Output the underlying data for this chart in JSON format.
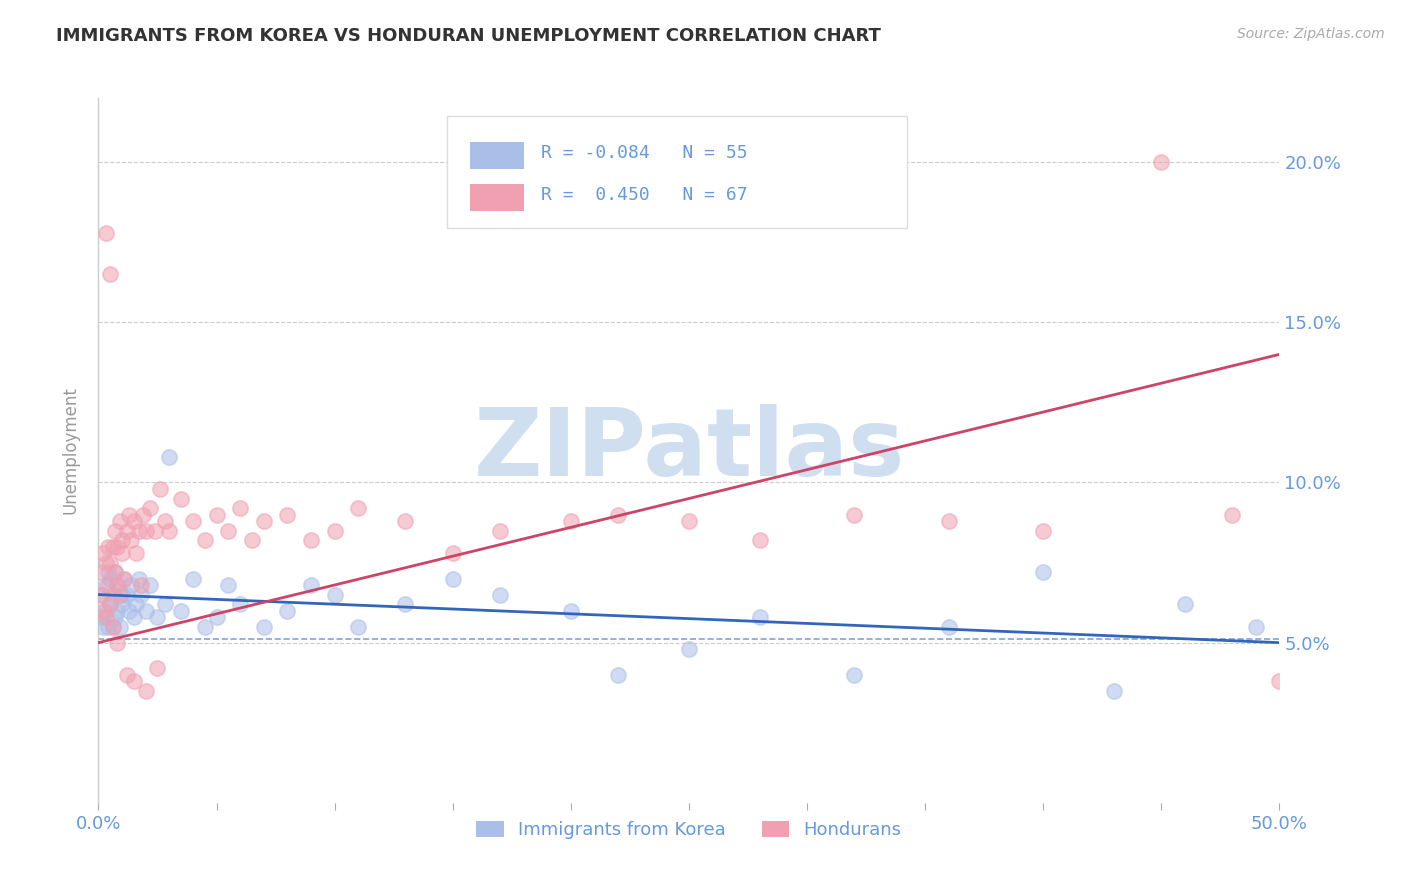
{
  "title": "IMMIGRANTS FROM KOREA VS HONDURAN UNEMPLOYMENT CORRELATION CHART",
  "source_text": "Source: ZipAtlas.com",
  "ylabel": "Unemployment",
  "xlim": [
    0.0,
    0.5
  ],
  "ylim": [
    0.0,
    0.22
  ],
  "yticks": [
    0.05,
    0.1,
    0.15,
    0.2
  ],
  "yticklabels": [
    "5.0%",
    "10.0%",
    "15.0%",
    "20.0%"
  ],
  "korea_R": -0.084,
  "korea_N": 55,
  "honduran_R": 0.45,
  "honduran_N": 67,
  "korea_color": "#aabfe8",
  "honduran_color": "#f0a0b0",
  "korea_line_color": "#3366bb",
  "honduran_line_color": "#cc4466",
  "background_color": "#ffffff",
  "watermark_text": "ZIPatlas",
  "watermark_color": "#d0dff0",
  "title_fontsize": 13,
  "axis_label_color": "#6699dd",
  "grid_color": "#cccccc",
  "legend_label_korea": "Immigrants from Korea",
  "legend_label_honduran": "Hondurans",
  "korea_scatter_x": [
    0.001,
    0.002,
    0.002,
    0.003,
    0.003,
    0.004,
    0.004,
    0.005,
    0.005,
    0.006,
    0.006,
    0.007,
    0.007,
    0.008,
    0.008,
    0.009,
    0.01,
    0.01,
    0.011,
    0.012,
    0.013,
    0.014,
    0.015,
    0.016,
    0.017,
    0.018,
    0.02,
    0.022,
    0.025,
    0.028,
    0.03,
    0.035,
    0.04,
    0.045,
    0.05,
    0.055,
    0.06,
    0.07,
    0.08,
    0.09,
    0.1,
    0.11,
    0.13,
    0.15,
    0.17,
    0.2,
    0.22,
    0.25,
    0.28,
    0.32,
    0.36,
    0.4,
    0.43,
    0.46,
    0.49
  ],
  "korea_scatter_y": [
    0.058,
    0.055,
    0.065,
    0.06,
    0.068,
    0.055,
    0.072,
    0.062,
    0.07,
    0.055,
    0.065,
    0.058,
    0.072,
    0.06,
    0.068,
    0.055,
    0.065,
    0.062,
    0.07,
    0.065,
    0.06,
    0.068,
    0.058,
    0.062,
    0.07,
    0.065,
    0.06,
    0.068,
    0.058,
    0.062,
    0.108,
    0.06,
    0.07,
    0.055,
    0.058,
    0.068,
    0.062,
    0.055,
    0.06,
    0.068,
    0.065,
    0.055,
    0.062,
    0.07,
    0.065,
    0.06,
    0.04,
    0.048,
    0.058,
    0.04,
    0.055,
    0.072,
    0.035,
    0.062,
    0.055
  ],
  "honduran_scatter_x": [
    0.001,
    0.001,
    0.002,
    0.002,
    0.003,
    0.003,
    0.004,
    0.004,
    0.005,
    0.005,
    0.006,
    0.006,
    0.007,
    0.007,
    0.008,
    0.008,
    0.009,
    0.009,
    0.01,
    0.01,
    0.011,
    0.012,
    0.013,
    0.014,
    0.015,
    0.016,
    0.017,
    0.018,
    0.019,
    0.02,
    0.022,
    0.024,
    0.026,
    0.028,
    0.03,
    0.035,
    0.04,
    0.045,
    0.05,
    0.055,
    0.06,
    0.065,
    0.07,
    0.08,
    0.09,
    0.1,
    0.11,
    0.13,
    0.15,
    0.17,
    0.2,
    0.22,
    0.25,
    0.28,
    0.32,
    0.36,
    0.4,
    0.45,
    0.48,
    0.5,
    0.003,
    0.005,
    0.008,
    0.012,
    0.015,
    0.02,
    0.025
  ],
  "honduran_scatter_y": [
    0.065,
    0.072,
    0.06,
    0.078,
    0.058,
    0.075,
    0.068,
    0.08,
    0.062,
    0.075,
    0.055,
    0.08,
    0.085,
    0.072,
    0.068,
    0.08,
    0.065,
    0.088,
    0.078,
    0.082,
    0.07,
    0.085,
    0.09,
    0.082,
    0.088,
    0.078,
    0.085,
    0.068,
    0.09,
    0.085,
    0.092,
    0.085,
    0.098,
    0.088,
    0.085,
    0.095,
    0.088,
    0.082,
    0.09,
    0.085,
    0.092,
    0.082,
    0.088,
    0.09,
    0.082,
    0.085,
    0.092,
    0.088,
    0.078,
    0.085,
    0.088,
    0.09,
    0.088,
    0.082,
    0.09,
    0.088,
    0.085,
    0.2,
    0.09,
    0.038,
    0.178,
    0.165,
    0.05,
    0.04,
    0.038,
    0.035,
    0.042
  ]
}
